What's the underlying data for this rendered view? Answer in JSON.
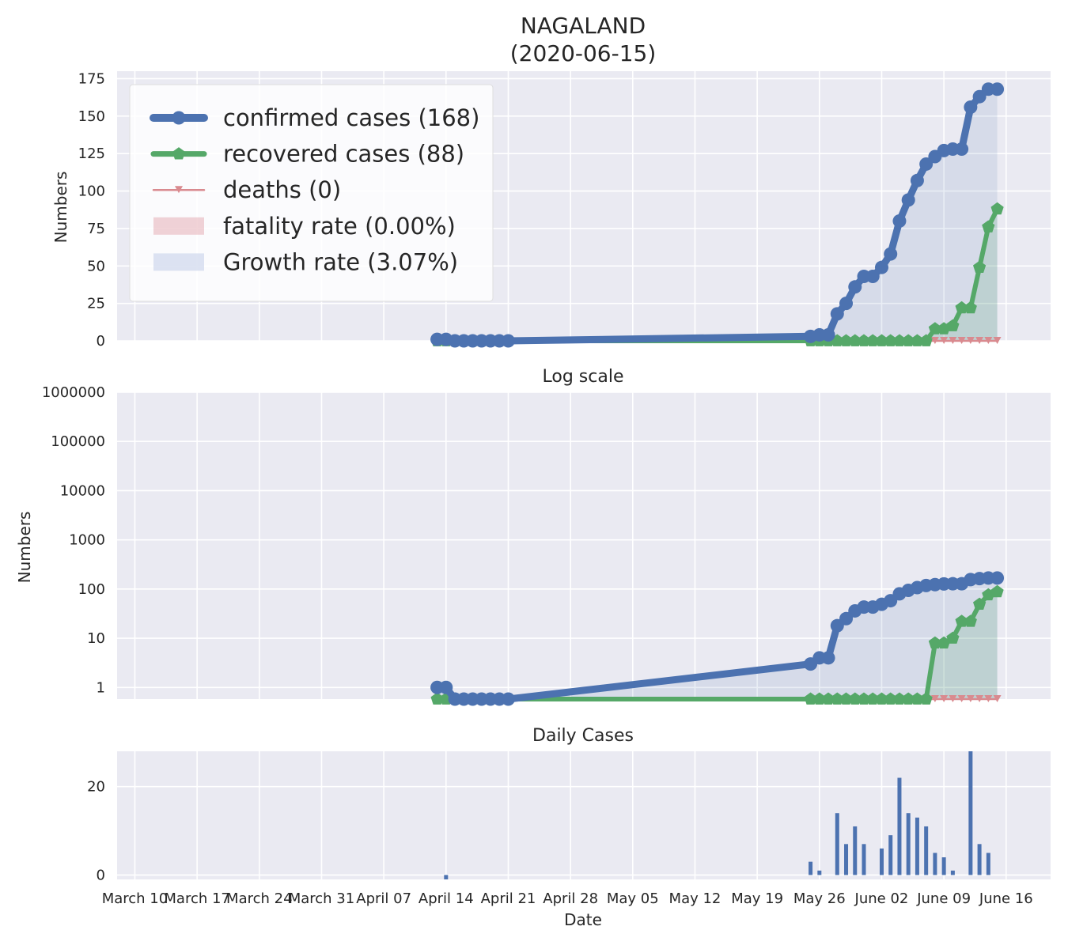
{
  "figure": {
    "title_line1": "NAGALAND",
    "title_line2": "(2020-06-15)",
    "xlabel": "Date"
  },
  "colors": {
    "confirmed": "#4c72b0",
    "recovered": "#55a868",
    "deaths": "#dd8452",
    "deaths_marker": "#d98a8f",
    "fatality_fill": "#e8b6bd",
    "growth_fill": "#d5dcef",
    "panel_bg": "#eaeaf2",
    "grid": "#ffffff"
  },
  "chart_data": [
    {
      "type": "line",
      "panel": "main",
      "title": "",
      "ylabel": "Numbers",
      "ylim": [
        0,
        180
      ],
      "yticks": [
        0,
        25,
        50,
        75,
        100,
        125,
        150,
        175
      ],
      "legend_position": "top-left",
      "legend": [
        {
          "key": "confirmed",
          "label": "confirmed cases (168)"
        },
        {
          "key": "recovered",
          "label": "recovered cases (88)"
        },
        {
          "key": "deaths",
          "label": "deaths (0)"
        },
        {
          "key": "fatality",
          "label": "fatality rate (0.00%)"
        },
        {
          "key": "growth",
          "label": "Growth rate (3.07%)"
        }
      ],
      "x": [
        "2020-04-13",
        "2020-04-14",
        "2020-04-15",
        "2020-04-16",
        "2020-04-17",
        "2020-04-18",
        "2020-04-19",
        "2020-04-20",
        "2020-04-21",
        "2020-05-25",
        "2020-05-26",
        "2020-05-27",
        "2020-05-28",
        "2020-05-29",
        "2020-05-30",
        "2020-05-31",
        "2020-06-01",
        "2020-06-02",
        "2020-06-03",
        "2020-06-04",
        "2020-06-05",
        "2020-06-06",
        "2020-06-07",
        "2020-06-08",
        "2020-06-09",
        "2020-06-10",
        "2020-06-11",
        "2020-06-12",
        "2020-06-13",
        "2020-06-14",
        "2020-06-15"
      ],
      "series": [
        {
          "name": "confirmed cases (168)",
          "key": "confirmed",
          "values": [
            1,
            1,
            0,
            0,
            0,
            0,
            0,
            0,
            0,
            3,
            4,
            4,
            18,
            25,
            36,
            43,
            43,
            49,
            58,
            80,
            94,
            107,
            118,
            123,
            127,
            128,
            128,
            156,
            163,
            168,
            168
          ]
        },
        {
          "name": "recovered cases (88)",
          "key": "recovered",
          "values": [
            0,
            0,
            0,
            0,
            0,
            0,
            0,
            0,
            0,
            0,
            0,
            0,
            0,
            0,
            0,
            0,
            0,
            0,
            0,
            0,
            0,
            0,
            0,
            8,
            8,
            10,
            22,
            22,
            49,
            76,
            88
          ]
        },
        {
          "name": "deaths (0)",
          "key": "deaths",
          "values": [
            0,
            0,
            0,
            0,
            0,
            0,
            0,
            0,
            0,
            0,
            0,
            0,
            0,
            0,
            0,
            0,
            0,
            0,
            0,
            0,
            0,
            0,
            0,
            0,
            0,
            0,
            0,
            0,
            0,
            0,
            0
          ]
        }
      ]
    },
    {
      "type": "line",
      "panel": "log",
      "title": "Log scale",
      "ylabel": "Numbers",
      "yscale": "log",
      "yticks": [
        "1",
        "10",
        "100",
        "1000",
        "10000",
        "100000",
        "1000000"
      ],
      "series_ref": "main"
    },
    {
      "type": "bar",
      "panel": "daily",
      "title": "Daily Cases",
      "ylim": [
        -1,
        28
      ],
      "yticks": [
        0,
        20
      ],
      "x": [
        "2020-04-14",
        "2020-05-25",
        "2020-05-26",
        "2020-05-28",
        "2020-05-29",
        "2020-05-30",
        "2020-05-31",
        "2020-06-02",
        "2020-06-03",
        "2020-06-04",
        "2020-06-05",
        "2020-06-06",
        "2020-06-07",
        "2020-06-08",
        "2020-06-09",
        "2020-06-10",
        "2020-06-12",
        "2020-06-13",
        "2020-06-14"
      ],
      "values": [
        -1,
        3,
        1,
        14,
        7,
        11,
        7,
        6,
        9,
        22,
        14,
        13,
        11,
        5,
        4,
        1,
        28,
        7,
        5
      ]
    }
  ],
  "x_axis": {
    "ticks": [
      {
        "date": "2020-03-10",
        "label": "March 10"
      },
      {
        "date": "2020-03-17",
        "label": "March 17"
      },
      {
        "date": "2020-03-24",
        "label": "March 24"
      },
      {
        "date": "2020-03-31",
        "label": "March 31"
      },
      {
        "date": "2020-04-07",
        "label": "April 07"
      },
      {
        "date": "2020-04-14",
        "label": "April 14"
      },
      {
        "date": "2020-04-21",
        "label": "April 21"
      },
      {
        "date": "2020-04-28",
        "label": "April 28"
      },
      {
        "date": "2020-05-05",
        "label": "May 05"
      },
      {
        "date": "2020-05-12",
        "label": "May 12"
      },
      {
        "date": "2020-05-19",
        "label": "May 19"
      },
      {
        "date": "2020-05-26",
        "label": "May 26"
      },
      {
        "date": "2020-06-02",
        "label": "June 02"
      },
      {
        "date": "2020-06-09",
        "label": "June 09"
      },
      {
        "date": "2020-06-16",
        "label": "June 16"
      }
    ],
    "range": [
      "2020-03-08",
      "2020-06-21"
    ]
  }
}
